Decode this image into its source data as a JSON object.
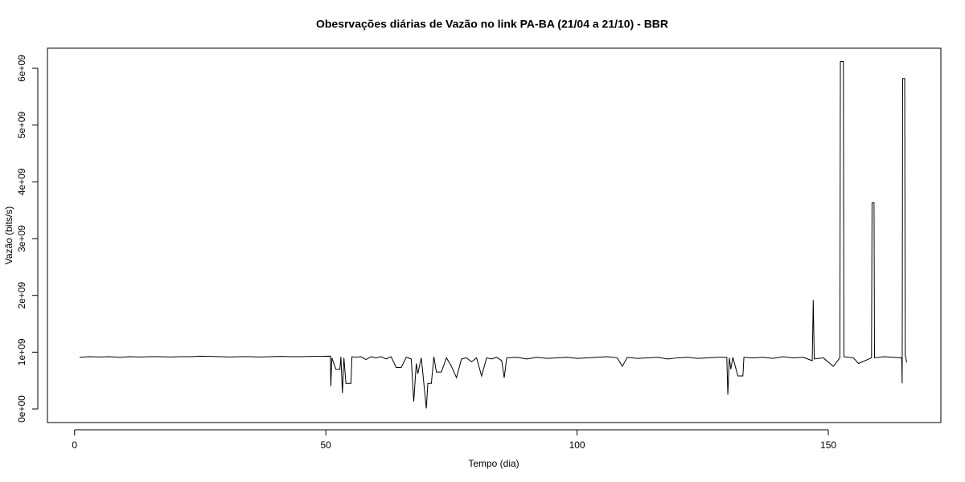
{
  "chart_data": {
    "type": "line",
    "title": "Obesrvações diárias de Vazão no link PA-BA (21/04 a 21/10) - BBR",
    "x_label": "Tempo (dia)",
    "y_label": "Vazão (bits/s)",
    "color": "#000000",
    "xlim": [
      -5.4,
      172.4
    ],
    "ylim": [
      -240000000,
      6354000000
    ],
    "xticks": [
      0,
      50,
      100,
      150
    ],
    "yticks": [
      {
        "value": 0,
        "label": "0e+00"
      },
      {
        "value": 1000000000,
        "label": "1e+09"
      },
      {
        "value": 2000000000,
        "label": "2e+09"
      },
      {
        "value": 3000000000,
        "label": "3e+09"
      },
      {
        "value": 4000000000,
        "label": "4e+09"
      },
      {
        "value": 5000000000,
        "label": "5e+09"
      },
      {
        "value": 6000000000,
        "label": "6e+09"
      }
    ],
    "x": [
      1,
      3,
      5,
      7,
      9,
      11,
      13,
      15,
      17,
      19,
      21,
      23,
      25,
      27,
      29,
      31,
      33,
      35,
      37,
      39,
      41,
      43,
      45,
      47,
      49,
      50.9,
      51,
      51.2,
      52,
      52.8,
      53,
      53.3,
      53.6,
      54,
      55,
      55.2,
      56,
      57,
      58,
      59,
      60,
      61,
      62,
      63,
      64,
      65,
      66,
      67,
      67.5,
      68,
      68.3,
      69,
      70,
      70.3,
      71,
      71.5,
      72,
      73,
      74,
      75,
      76,
      77,
      78,
      79,
      80,
      81,
      82,
      83,
      84,
      85,
      85.5,
      86,
      88,
      90,
      92,
      94,
      96,
      98,
      100,
      102,
      104,
      106,
      108,
      109,
      110,
      112,
      114,
      116,
      118,
      120,
      122,
      124,
      126,
      128,
      129.8,
      130,
      130.3,
      130.6,
      131,
      132,
      133,
      133.2,
      135,
      137,
      139,
      141,
      143,
      145,
      146.8,
      147,
      147.2,
      149,
      151,
      152.3,
      152.4,
      153,
      153.1,
      155,
      156,
      158.6,
      158.7,
      159.1,
      159.2,
      161,
      163,
      164.6,
      164.7,
      164.8,
      165.2,
      165.3,
      165.6
    ],
    "values": [
      910000000.0,
      920000000.0,
      915000000.0,
      920000000.0,
      910000000.0,
      920000000.0,
      915000000.0,
      920000000.0,
      920000000.0,
      915000000.0,
      920000000.0,
      920000000.0,
      930000000.0,
      925000000.0,
      920000000.0,
      915000000.0,
      920000000.0,
      920000000.0,
      915000000.0,
      920000000.0,
      925000000.0,
      920000000.0,
      920000000.0,
      925000000.0,
      925000000.0,
      930000000.0,
      400000000.0,
      900000000.0,
      700000000.0,
      700000000.0,
      920000000.0,
      280000000.0,
      900000000.0,
      450000000.0,
      450000000.0,
      920000000.0,
      910000000.0,
      920000000.0,
      870000000.0,
      920000000.0,
      900000000.0,
      920000000.0,
      880000000.0,
      920000000.0,
      730000000.0,
      730000000.0,
      910000000.0,
      880000000.0,
      130000000.0,
      800000000.0,
      620000000.0,
      900000000.0,
      10000000.0,
      450000000.0,
      450000000.0,
      920000000.0,
      650000000.0,
      650000000.0,
      900000000.0,
      750000000.0,
      550000000.0,
      880000000.0,
      900000000.0,
      830000000.0,
      900000000.0,
      580000000.0,
      900000000.0,
      880000000.0,
      910000000.0,
      850000000.0,
      550000000.0,
      900000000.0,
      910000000.0,
      880000000.0,
      910000000.0,
      890000000.0,
      900000000.0,
      910000000.0,
      890000000.0,
      900000000.0,
      910000000.0,
      920000000.0,
      900000000.0,
      750000000.0,
      910000000.0,
      890000000.0,
      900000000.0,
      910000000.0,
      880000000.0,
      900000000.0,
      910000000.0,
      890000000.0,
      900000000.0,
      910000000.0,
      910000000.0,
      250000000.0,
      900000000.0,
      700000000.0,
      910000000.0,
      580000000.0,
      580000000.0,
      910000000.0,
      900000000.0,
      910000000.0,
      890000000.0,
      920000000.0,
      900000000.0,
      910000000.0,
      850000000.0,
      1920000000.0,
      880000000.0,
      900000000.0,
      750000000.0,
      900000000.0,
      6120000000.0,
      6120000000.0,
      920000000.0,
      900000000.0,
      800000000.0,
      900000000.0,
      3630000000.0,
      3630000000.0,
      900000000.0,
      920000000.0,
      910000000.0,
      900000000.0,
      450000000.0,
      5820000000.0,
      5820000000.0,
      950000000.0,
      820000000.0
    ]
  }
}
